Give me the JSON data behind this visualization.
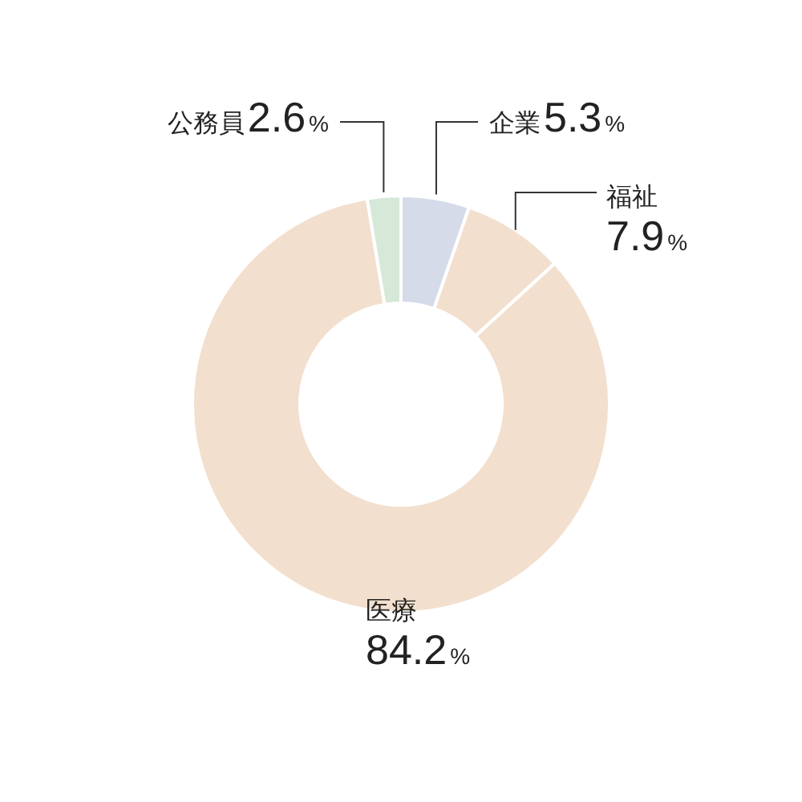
{
  "chart_data": {
    "type": "donut",
    "categories": [
      "企業",
      "福祉",
      "医療",
      "公務員"
    ],
    "values": [
      5.3,
      7.9,
      84.2,
      2.6
    ],
    "colors": [
      "#d5dbe8",
      "#f3dfcd",
      "#f3dfcd",
      "#d6e8d8"
    ],
    "value_labels": [
      "5.3%",
      "7.9%",
      "84.2%",
      "2.6%"
    ]
  }
}
